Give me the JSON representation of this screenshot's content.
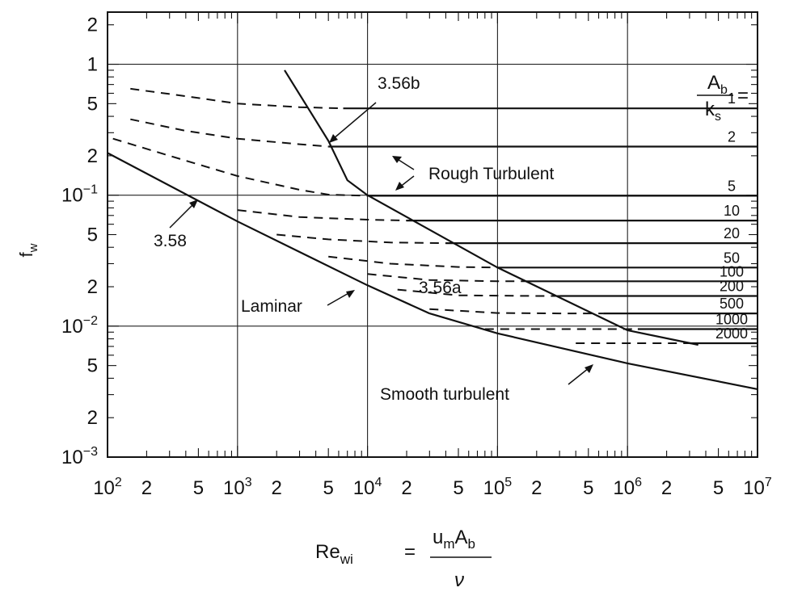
{
  "chart_data": {
    "type": "line",
    "title": "",
    "xscale": "log",
    "yscale": "log",
    "xlim": [
      100,
      10000000
    ],
    "ylim": [
      0.001,
      2.5
    ],
    "grid": true,
    "ylabel": {
      "main": "f",
      "sub": "w"
    },
    "xlabel": {
      "lhs_main": "Re",
      "lhs_sub": "wi",
      "equals": "=",
      "num_main": "u",
      "num_sub1": "m",
      "num_mid": "A",
      "num_sub2": "b",
      "den": "ν"
    },
    "x_ticks": [
      {
        "v": 100,
        "main": "10",
        "sup": "2"
      },
      {
        "v": 200,
        "main": "2",
        "sup": ""
      },
      {
        "v": 500,
        "main": "5",
        "sup": ""
      },
      {
        "v": 1000,
        "main": "10",
        "sup": "3"
      },
      {
        "v": 2000,
        "main": "2",
        "sup": ""
      },
      {
        "v": 5000,
        "main": "5",
        "sup": ""
      },
      {
        "v": 10000,
        "main": "10",
        "sup": "4"
      },
      {
        "v": 20000,
        "main": "2",
        "sup": ""
      },
      {
        "v": 50000,
        "main": "5",
        "sup": ""
      },
      {
        "v": 100000,
        "main": "10",
        "sup": "5"
      },
      {
        "v": 200000,
        "main": "2",
        "sup": ""
      },
      {
        "v": 500000,
        "main": "5",
        "sup": ""
      },
      {
        "v": 1000000,
        "main": "10",
        "sup": "6"
      },
      {
        "v": 2000000,
        "main": "2",
        "sup": ""
      },
      {
        "v": 5000000,
        "main": "5",
        "sup": ""
      },
      {
        "v": 10000000,
        "main": "10",
        "sup": "7"
      }
    ],
    "y_ticks": [
      {
        "v": 2,
        "main": "2",
        "sup": ""
      },
      {
        "v": 1,
        "main": "1",
        "sup": ""
      },
      {
        "v": 0.5,
        "main": "5",
        "sup": ""
      },
      {
        "v": 0.2,
        "main": "2",
        "sup": ""
      },
      {
        "v": 0.1,
        "main": "10",
        "sup": "−1"
      },
      {
        "v": 0.05,
        "main": "5",
        "sup": ""
      },
      {
        "v": 0.02,
        "main": "2",
        "sup": ""
      },
      {
        "v": 0.01,
        "main": "10",
        "sup": "−2"
      },
      {
        "v": 0.005,
        "main": "5",
        "sup": ""
      },
      {
        "v": 0.002,
        "main": "2",
        "sup": ""
      },
      {
        "v": 0.001,
        "main": "10",
        "sup": "−3"
      }
    ],
    "ratio_header": {
      "num_main": "A",
      "num_sub": "b",
      "den_main": "k",
      "den_sub": "s",
      "equals": "="
    },
    "series": [
      {
        "name": "3.58",
        "style": "solid",
        "points": [
          [
            100,
            0.21
          ],
          [
            1000,
            0.063
          ],
          [
            10000,
            0.0205
          ],
          [
            30000,
            0.0125
          ]
        ]
      },
      {
        "name": "3.56b",
        "style": "solid",
        "points": [
          [
            2300,
            0.9
          ],
          [
            5000,
            0.26
          ],
          [
            7000,
            0.13
          ],
          [
            10000,
            0.1
          ]
        ]
      },
      {
        "name": "3.56a",
        "style": "solid",
        "points": [
          [
            10000,
            0.1
          ],
          [
            100000,
            0.028
          ],
          [
            1000000,
            0.0093
          ],
          [
            3500000,
            0.0072
          ]
        ]
      },
      {
        "name": "Smooth turbulent",
        "style": "solid",
        "points": [
          [
            30000,
            0.0125
          ],
          [
            100000,
            0.0088
          ],
          [
            1000000,
            0.0052
          ],
          [
            10000000,
            0.0033
          ]
        ]
      }
    ],
    "rough_curves": [
      {
        "ratio": "1",
        "fw": 0.46,
        "dash": [
          [
            150,
            0.65
          ],
          [
            400,
            0.57
          ],
          [
            1000,
            0.5
          ],
          [
            3000,
            0.47
          ],
          [
            6500,
            0.46
          ]
        ],
        "solid_from": 6500
      },
      {
        "ratio": "2",
        "fw": 0.235,
        "dash": [
          [
            150,
            0.38
          ],
          [
            400,
            0.31
          ],
          [
            1000,
            0.27
          ],
          [
            3000,
            0.245
          ],
          [
            5000,
            0.235
          ]
        ],
        "solid_from": 5000
      },
      {
        "ratio": "5",
        "fw": 0.099,
        "dash": [
          [
            110,
            0.27
          ],
          [
            300,
            0.2
          ],
          [
            1000,
            0.14
          ],
          [
            3000,
            0.11
          ],
          [
            5000,
            0.101
          ],
          [
            10000,
            0.099
          ]
        ],
        "solid_from": 10000
      },
      {
        "ratio": "10",
        "fw": 0.064,
        "dash": [
          [
            1000,
            0.077
          ],
          [
            3000,
            0.068
          ],
          [
            10000,
            0.065
          ],
          [
            20000,
            0.064
          ]
        ],
        "solid_from": 20000
      },
      {
        "ratio": "20",
        "fw": 0.043,
        "dash": [
          [
            2000,
            0.05
          ],
          [
            5000,
            0.046
          ],
          [
            15000,
            0.0435
          ],
          [
            40000,
            0.043
          ]
        ],
        "solid_from": 40000
      },
      {
        "ratio": "50",
        "fw": 0.028,
        "dash": [
          [
            5000,
            0.034
          ],
          [
            15000,
            0.03
          ],
          [
            50000,
            0.0283
          ],
          [
            100000,
            0.028
          ]
        ],
        "solid_from": 100000
      },
      {
        "ratio": "100",
        "fw": 0.022,
        "dash": [
          [
            10000,
            0.025
          ],
          [
            30000,
            0.0225
          ],
          [
            100000,
            0.022
          ],
          [
            170000,
            0.022
          ]
        ],
        "solid_from": 170000
      },
      {
        "ratio": "200",
        "fw": 0.017,
        "dash": [
          [
            17000,
            0.019
          ],
          [
            50000,
            0.0172
          ],
          [
            200000,
            0.017
          ],
          [
            300000,
            0.017
          ]
        ],
        "solid_from": 300000
      },
      {
        "ratio": "500",
        "fw": 0.0125,
        "dash": [
          [
            30000,
            0.0135
          ],
          [
            100000,
            0.0126
          ],
          [
            300000,
            0.0125
          ],
          [
            650000,
            0.0125
          ]
        ],
        "solid_from": 650000
      },
      {
        "ratio": "1000",
        "fw": 0.0095,
        "dash": [
          [
            80000,
            0.0095
          ],
          [
            500000,
            0.0095
          ],
          [
            1200000,
            0.0095
          ]
        ],
        "solid_from": 1200000
      },
      {
        "ratio": "2000",
        "fw": 0.0074,
        "dash": [
          [
            400000,
            0.0074
          ],
          [
            2000000,
            0.0074
          ],
          [
            3000000,
            0.0074
          ]
        ],
        "solid_from": 3000000
      }
    ],
    "annotations": {
      "eq_3_56b": "3.56b",
      "rough_turbulent": "Rough Turbulent",
      "eq_3_58": "3.58",
      "laminar": "Laminar",
      "eq_3_56a": "3.56a",
      "smooth_turbulent": "Smooth turbulent"
    }
  }
}
